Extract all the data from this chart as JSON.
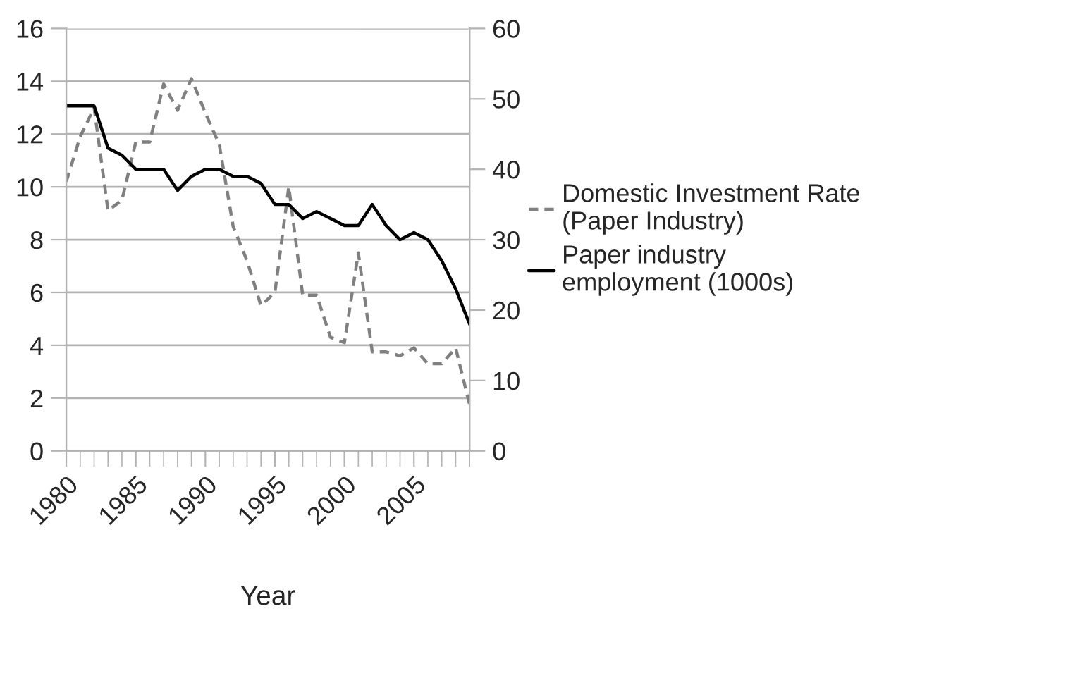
{
  "chart_data": {
    "type": "line",
    "xlabel": "Year",
    "x": [
      1980,
      1981,
      1982,
      1983,
      1984,
      1985,
      1986,
      1987,
      1988,
      1989,
      1990,
      1991,
      1992,
      1993,
      1994,
      1995,
      1996,
      1997,
      1998,
      1999,
      2000,
      2001,
      2002,
      2003,
      2004,
      2005,
      2006,
      2007,
      2008,
      2009
    ],
    "series": [
      {
        "name": "Domestic Investment Rate\n(Paper Industry)",
        "color": "#808080",
        "line_style": "dashed",
        "values": [
          10.2,
          11.9,
          13.0,
          9.1,
          9.5,
          11.7,
          11.7,
          13.9,
          12.9,
          14.1,
          12.8,
          11.6,
          8.5,
          7.2,
          5.5,
          6.0,
          10.0,
          5.9,
          5.9,
          4.3,
          4.1,
          7.5,
          3.75,
          3.75,
          3.6,
          3.9,
          3.3,
          3.3,
          3.9,
          1.75
        ]
      },
      {
        "name": "Paper industry\nemployment (1000s)",
        "color": "#000000",
        "line_style": "solid",
        "axis": "y2",
        "values": [
          49,
          49,
          49,
          43,
          42,
          40,
          40,
          40,
          37,
          39,
          40,
          40,
          39,
          39,
          38,
          35,
          35,
          33,
          34,
          33,
          32,
          32,
          35,
          32,
          30,
          31,
          30,
          27,
          23,
          18
        ]
      }
    ],
    "xlim": [
      1980,
      2009
    ],
    "xticks": [
      1980,
      1985,
      1990,
      1995,
      2000,
      2005
    ],
    "ylim": [
      0,
      16
    ],
    "yticks": [
      0,
      2,
      4,
      6,
      8,
      10,
      12,
      14,
      16
    ],
    "y2lim": [
      0,
      60
    ],
    "y2ticks": [
      0,
      10,
      20,
      30,
      40,
      50,
      60
    ],
    "grid": "y",
    "legend": "right",
    "marker": "none"
  }
}
